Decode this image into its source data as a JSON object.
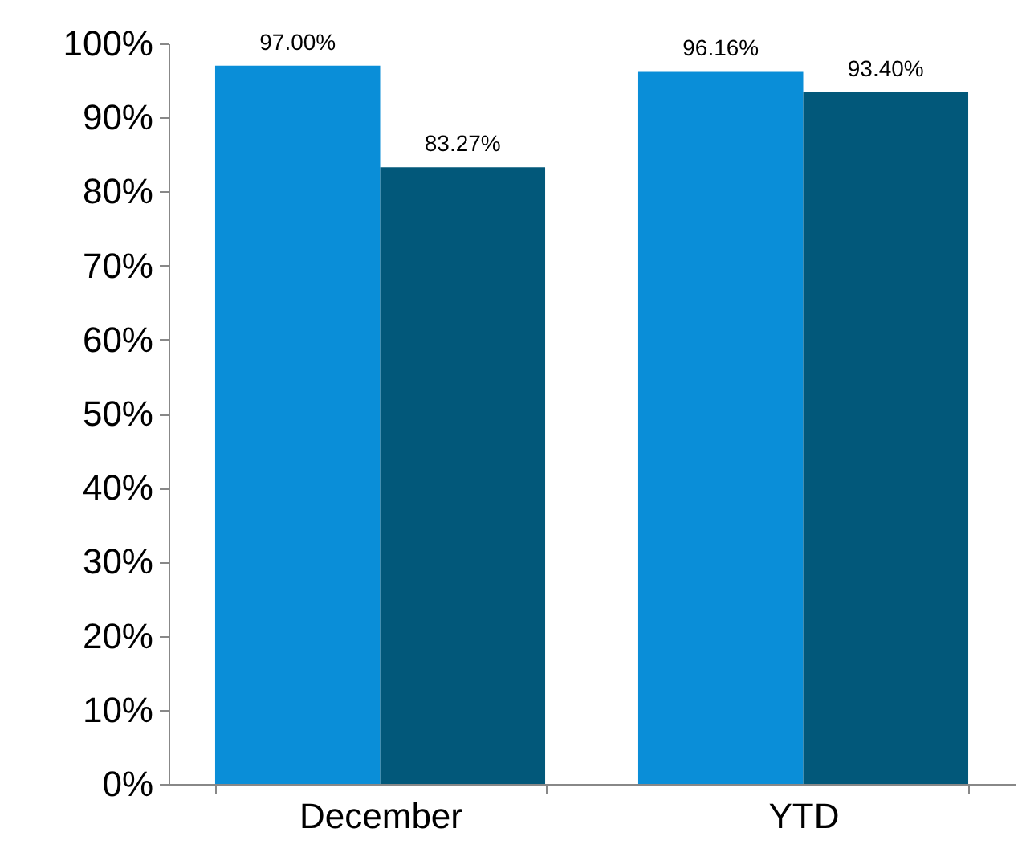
{
  "chart_data": {
    "type": "bar",
    "categories": [
      "December",
      "YTD"
    ],
    "series": [
      {
        "color": "#0a8ed8",
        "values": [
          97.0,
          96.16
        ],
        "value_labels": [
          "97.00%",
          "96.16%"
        ]
      },
      {
        "color": "#02587a",
        "values": [
          83.27,
          93.4
        ],
        "value_labels": [
          "83.27%",
          "93.40%"
        ]
      }
    ],
    "ylim": [
      0,
      100
    ],
    "yticks": [
      {
        "value": 0,
        "label": "0%"
      },
      {
        "value": 10,
        "label": "10%"
      },
      {
        "value": 20,
        "label": "20%"
      },
      {
        "value": 30,
        "label": "30%"
      },
      {
        "value": 40,
        "label": "40%"
      },
      {
        "value": 50,
        "label": "50%"
      },
      {
        "value": 60,
        "label": "60%"
      },
      {
        "value": 70,
        "label": "70%"
      },
      {
        "value": 80,
        "label": "80%"
      },
      {
        "value": 90,
        "label": "90%"
      },
      {
        "value": 100,
        "label": "100%"
      }
    ],
    "grid": false,
    "legend": false
  }
}
